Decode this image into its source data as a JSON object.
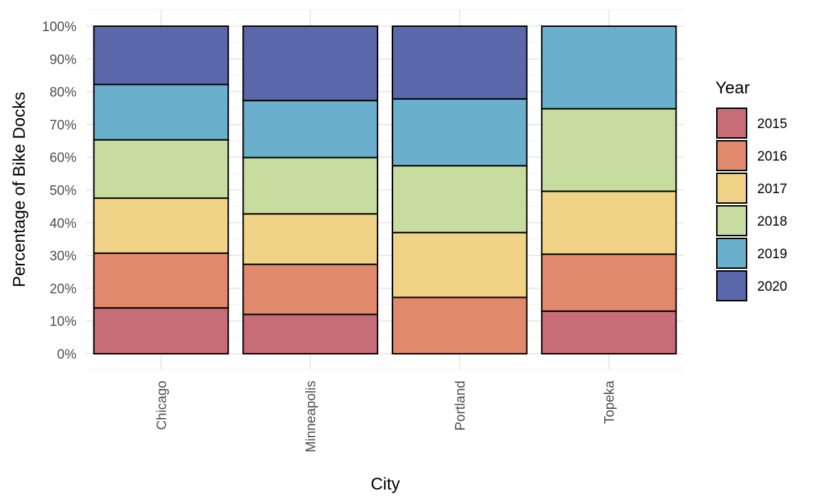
{
  "chart_data": {
    "type": "bar",
    "stacked": true,
    "normalized": true,
    "xlabel": "City",
    "ylabel": "Percentage of Bike Docks",
    "ylim": [
      0,
      100
    ],
    "yticks": [
      "0%",
      "10%",
      "20%",
      "30%",
      "40%",
      "50%",
      "60%",
      "70%",
      "80%",
      "90%",
      "100%"
    ],
    "grid": true,
    "categories": [
      "Chicago",
      "Minneapolis",
      "Portland",
      "Topeka"
    ],
    "series": [
      {
        "name": "2015",
        "color": "#c66d78",
        "values": [
          14.0,
          12.0,
          0.0,
          13.0
        ]
      },
      {
        "name": "2016",
        "color": "#e0896d",
        "values": [
          16.7,
          15.3,
          17.2,
          17.4
        ]
      },
      {
        "name": "2017",
        "color": "#f0d386",
        "values": [
          16.8,
          15.4,
          19.8,
          19.2
        ]
      },
      {
        "name": "2018",
        "color": "#c7dd9f",
        "values": [
          17.8,
          17.2,
          20.4,
          25.2
        ]
      },
      {
        "name": "2019",
        "color": "#6aafcb",
        "values": [
          16.9,
          17.4,
          20.4,
          25.2
        ]
      },
      {
        "name": "2020",
        "color": "#5b67ab",
        "values": [
          17.8,
          22.7,
          22.2,
          0.0
        ]
      }
    ],
    "legend": {
      "title": "Year",
      "position": "right"
    }
  }
}
